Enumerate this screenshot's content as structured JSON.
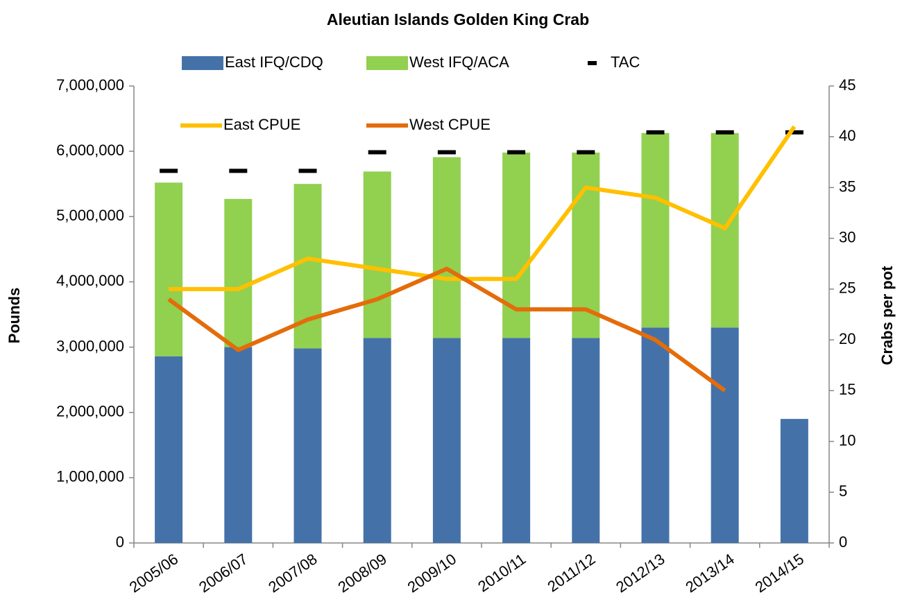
{
  "chart_data": {
    "type": "bar",
    "title": "Aleutian Islands Golden King Crab",
    "categories": [
      "2005/06",
      "2006/07",
      "2007/08",
      "2008/09",
      "2009/10",
      "2010/11",
      "2011/12",
      "2012/13",
      "2013/14",
      "2014/15"
    ],
    "series": [
      {
        "name": "East IFQ/CDQ",
        "type": "bar",
        "color": "#4472a8",
        "values": [
          2860000,
          3000000,
          2980000,
          3140000,
          3140000,
          3140000,
          3140000,
          3300000,
          3300000,
          1900000
        ]
      },
      {
        "name": "West IFQ/ACA",
        "type": "bar",
        "color": "#92d050",
        "values": [
          2660000,
          2270000,
          2520000,
          2550000,
          2770000,
          2840000,
          2840000,
          2980000,
          2980000,
          null
        ]
      },
      {
        "name": "TAC",
        "type": "marker",
        "color": "#000000",
        "values": [
          5700000,
          5700000,
          5700000,
          5985000,
          5985000,
          5985000,
          5985000,
          6290000,
          6290000,
          6290000
        ]
      },
      {
        "name": "East CPUE",
        "type": "line",
        "axis": "y2",
        "color": "#ffc000",
        "values": [
          25,
          25,
          28,
          27,
          26,
          26,
          35,
          34,
          31,
          41
        ]
      },
      {
        "name": "West CPUE",
        "type": "line",
        "axis": "y2",
        "color": "#e46c0a",
        "values": [
          24,
          19,
          22,
          24,
          27,
          23,
          23,
          20,
          15,
          null
        ]
      }
    ],
    "y_label": "Pounds",
    "y2_label": "Crabs per pot",
    "ylim": [
      0,
      7000000
    ],
    "yticks": [
      0,
      {
        "value": 1000000,
        "label": "1,000,000"
      },
      {
        "value": 2000000,
        "label": "2,000,000"
      },
      {
        "value": 3000000,
        "label": "3,000,000"
      },
      {
        "value": 4000000,
        "label": "4,000,000"
      },
      {
        "value": 5000000,
        "label": "5,000,000"
      },
      {
        "value": 6000000,
        "label": "6,000,000"
      },
      {
        "value": 7000000,
        "label": "7,000,000"
      }
    ],
    "y2lim": [
      0,
      45
    ],
    "y2ticks": [
      0,
      5,
      10,
      15,
      20,
      25,
      30,
      35,
      40,
      45
    ],
    "stacked": true,
    "grid": false
  }
}
